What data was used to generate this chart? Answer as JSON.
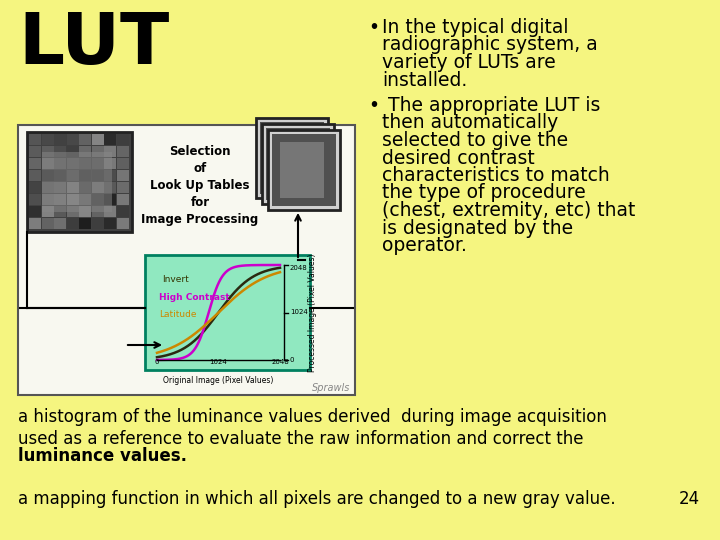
{
  "background_color": "#f5f580",
  "title": "LUT",
  "title_fontsize": 52,
  "title_color": "#000000",
  "bullet1_lines": [
    "In the typical digital",
    "radiographic system, a",
    "variety of LUTs are",
    "installed."
  ],
  "bullet2_lines": [
    " The appropriate LUT is",
    "then automatically",
    "selected to give the",
    "desired contrast",
    "characteristics to match",
    "the type of procedure",
    "(chest, extremity, etc) that",
    "is designated by the",
    "operator."
  ],
  "bullet_fontsize": 13.5,
  "bullet_color": "#000000",
  "footer1": "a histogram of the luminance values derived  during image acquisition",
  "footer2a": "used as a reference to evaluate the raw information and correct the",
  "footer2b": "luminance values.",
  "footer3": "a mapping function in which all pixels are changed to a new gray value.",
  "footer_fontsize": 12,
  "footer_color": "#000000",
  "page_number": "24",
  "diagram_bg": "#ffffff",
  "green_box_color": "#90e8c0",
  "green_box_edge": "#008060"
}
